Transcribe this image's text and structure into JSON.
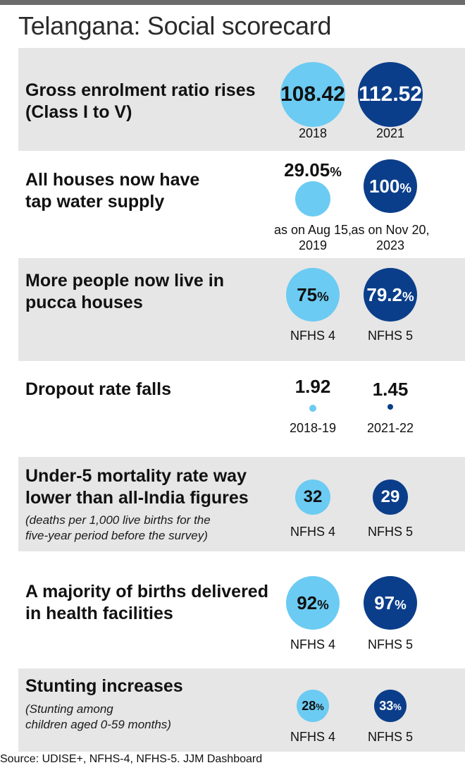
{
  "title": "Telangana: Social scorecard",
  "source": "Source: UDISE+, NFHS-4, NFHS-5. JJM Dashboard",
  "colors": {
    "earlier": "#6ccbf2",
    "later": "#0b3e8a",
    "panel": "#e6e6e6"
  },
  "chart_data": [
    {
      "type": "bubble",
      "title": "Gross enrolment ratio rises\n(Class I to V)",
      "categories": [
        "2018",
        "2021"
      ],
      "values": [
        108.42,
        112.52
      ],
      "labels": [
        "108.42",
        "112.52"
      ],
      "unit": ""
    },
    {
      "type": "bubble",
      "title": "All houses now have\ntap water supply",
      "categories": [
        "as on Aug 15,\n2019",
        "as on Nov 20,\n2023"
      ],
      "values": [
        29.05,
        100
      ],
      "labels": [
        "29.05",
        "100"
      ],
      "unit": "%"
    },
    {
      "type": "bubble",
      "title": "More people now live in\npucca houses",
      "categories": [
        "NFHS 4",
        "NFHS 5"
      ],
      "values": [
        75,
        79.2
      ],
      "labels": [
        "75",
        "79.2"
      ],
      "unit": "%"
    },
    {
      "type": "bubble",
      "title": "Dropout rate falls",
      "categories": [
        "2018-19",
        "2021-22"
      ],
      "values": [
        1.92,
        1.45
      ],
      "labels": [
        "1.92",
        "1.45"
      ],
      "unit": ""
    },
    {
      "type": "bubble",
      "title": "Under-5 mortality rate way\nlower than all-India figures",
      "note": "(deaths per 1,000 live births for the\nfive-year period before the survey)",
      "categories": [
        "NFHS 4",
        "NFHS 5"
      ],
      "values": [
        32,
        29
      ],
      "labels": [
        "32",
        "29"
      ],
      "unit": ""
    },
    {
      "type": "bubble",
      "title": "A majority of births delivered\nin health facilities",
      "categories": [
        "NFHS 4",
        "NFHS 5"
      ],
      "values": [
        92,
        97
      ],
      "labels": [
        "92",
        "97"
      ],
      "unit": "%"
    },
    {
      "type": "bubble",
      "title": "Stunting increases",
      "note": "(Stunting among\nchildren aged 0-59 months)",
      "categories": [
        "NFHS 4",
        "NFHS 5"
      ],
      "values": [
        28,
        33
      ],
      "labels": [
        "28",
        "33"
      ],
      "unit": "%"
    }
  ]
}
